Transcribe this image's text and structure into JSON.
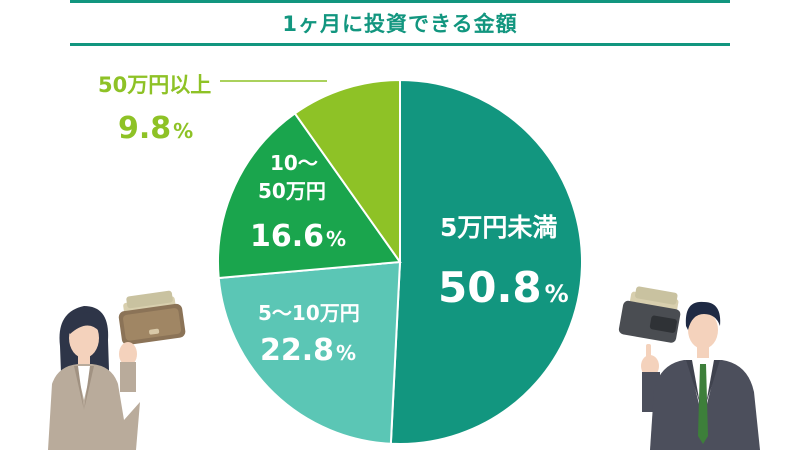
{
  "title": "1ヶ月に投資できる金額",
  "chart_data": {
    "type": "pie",
    "start_angle_deg": 0,
    "direction": "clockwise",
    "slices": [
      {
        "category_line1": "5万円未満",
        "category_line2": "",
        "value": 50.8,
        "value_label": "50.8",
        "unit": "%",
        "color": "#12967f"
      },
      {
        "category_line1": "5〜10万円",
        "category_line2": "",
        "value": 22.8,
        "value_label": "22.8",
        "unit": "%",
        "color": "#5bc6b5"
      },
      {
        "category_line1": "10〜",
        "category_line2": "50万円",
        "value": 16.6,
        "value_label": "16.6",
        "unit": "%",
        "color": "#1aa54d"
      },
      {
        "category_line1": "50万円以上",
        "category_line2": "",
        "value": 9.8,
        "value_label": "9.8",
        "unit": "%",
        "color": "#8ec226"
      }
    ]
  },
  "colors": {
    "accent": "#12967f",
    "outside_label": "#8ec226"
  }
}
